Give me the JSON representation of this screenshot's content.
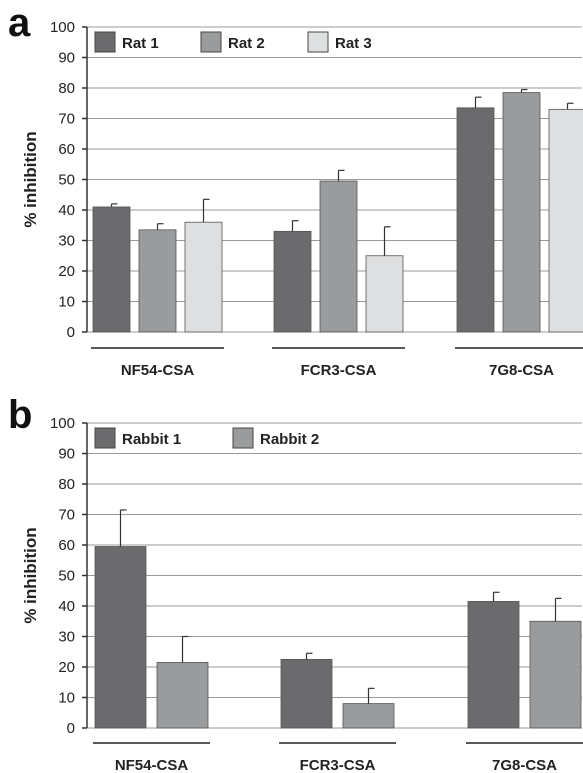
{
  "chart_data": [
    {
      "panel": "a",
      "type": "bar",
      "ylabel": "% inhibition",
      "ylim": [
        0,
        100
      ],
      "yticks": [
        0,
        10,
        20,
        30,
        40,
        50,
        60,
        70,
        80,
        90,
        100
      ],
      "grid": true,
      "legend_position": "top-left",
      "categories": [
        "NF54-CSA",
        "FCR3-CSA",
        "7G8-CSA"
      ],
      "series": [
        {
          "name": "Rat 1",
          "color": "#6b6b6d",
          "values": [
            41,
            33,
            73.5
          ],
          "errors": [
            1,
            3.5,
            3.5
          ]
        },
        {
          "name": "Rat 2",
          "color": "#9a9b9d",
          "values": [
            33.5,
            49.5,
            78.5
          ],
          "errors": [
            2,
            3.5,
            1
          ]
        },
        {
          "name": "Rat 3",
          "color": "#dedfe0",
          "values": [
            36,
            25,
            73
          ],
          "errors": [
            7.5,
            9.5,
            2
          ]
        }
      ]
    },
    {
      "panel": "b",
      "type": "bar",
      "ylabel": "% inhibition",
      "ylim": [
        0,
        100
      ],
      "yticks": [
        0,
        10,
        20,
        30,
        40,
        50,
        60,
        70,
        80,
        90,
        100
      ],
      "grid": true,
      "legend_position": "top-left",
      "categories": [
        "NF54-CSA",
        "FCR3-CSA",
        "7G8-CSA"
      ],
      "series": [
        {
          "name": "Rabbit 1",
          "color": "#6b6b6d",
          "values": [
            59.5,
            22.5,
            41.5
          ],
          "errors": [
            12,
            2,
            3
          ]
        },
        {
          "name": "Rabbit 2",
          "color": "#9a9b9d",
          "values": [
            21.5,
            8,
            35
          ],
          "errors": [
            8.5,
            5,
            7.5
          ]
        }
      ]
    }
  ]
}
